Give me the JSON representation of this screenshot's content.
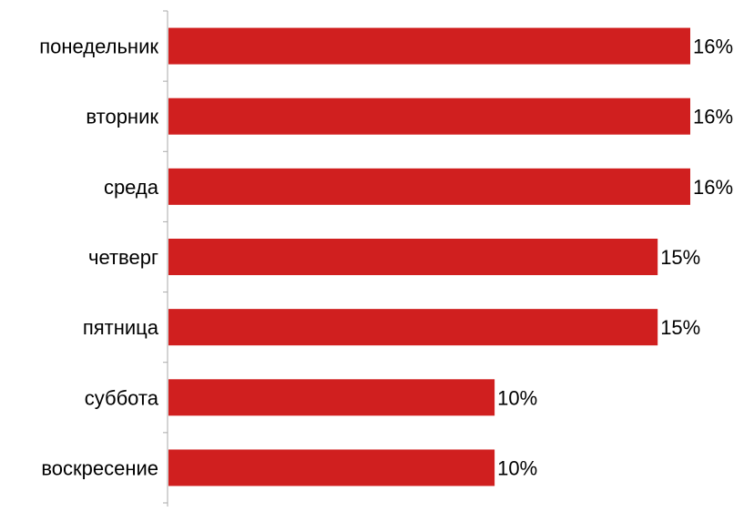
{
  "chart_data": {
    "type": "bar",
    "orientation": "horizontal",
    "title": "",
    "xlabel": "",
    "ylabel": "",
    "categories": [
      "понедельник",
      "вторник",
      "среда",
      "четверг",
      "пятница",
      "суббота",
      "воскресение"
    ],
    "values": [
      16,
      16,
      16,
      15,
      15,
      10,
      10
    ],
    "value_labels": [
      "16%",
      "16%",
      "16%",
      "15%",
      "15%",
      "10%",
      "10%"
    ],
    "xlim": [
      0,
      16
    ],
    "grid": false,
    "legend": "none",
    "colors": {
      "bar": "#d01f1f",
      "axis": "#aaaaaa",
      "text": "#000000"
    }
  }
}
